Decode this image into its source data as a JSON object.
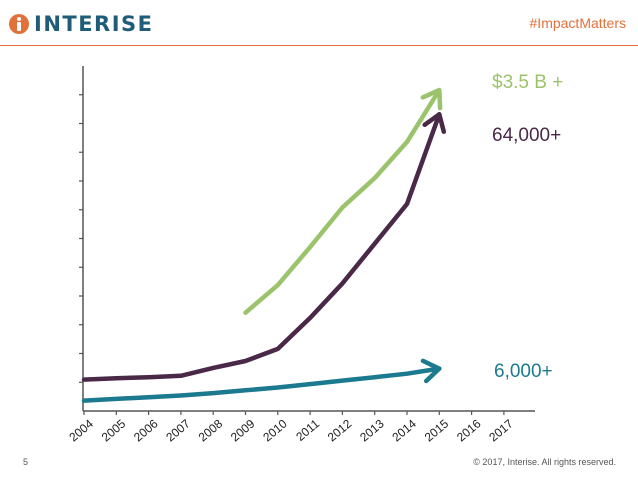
{
  "header": {
    "logo_text": "INTERISE",
    "hashtag": "#ImpactMatters",
    "brand_color": "#1f5c78",
    "accent_color": "#e2703a"
  },
  "footer": {
    "page_number": "5",
    "copyright": "© 2017, Interise. All rights reserved."
  },
  "chart_data": {
    "type": "line",
    "title": "",
    "xlabel": "",
    "ylabel": "",
    "x": [
      "2004",
      "2005",
      "2006",
      "2007",
      "2008",
      "2009",
      "2010",
      "2011",
      "2012",
      "2013",
      "2014",
      "2015",
      "2016",
      "2017"
    ],
    "ylim": [
      0,
      100
    ],
    "y_ticks": 11,
    "grid": false,
    "series": [
      {
        "name": "",
        "label": "$3.5 B +",
        "color": "#9bc36b",
        "values": [
          null,
          null,
          null,
          null,
          null,
          28.5,
          36.5,
          47.5,
          59,
          67.5,
          78,
          93,
          null,
          null
        ],
        "arrow": true
      },
      {
        "name": "",
        "label": "64,000+",
        "color": "#4a2847",
        "values": [
          9.1,
          9.5,
          9.8,
          10.2,
          12.5,
          14.5,
          18,
          27,
          37,
          48.5,
          60,
          86,
          null,
          null
        ],
        "arrow": true
      },
      {
        "name": "",
        "label": "6,000+",
        "color": "#1b7a8f",
        "values": [
          3,
          3.5,
          4,
          4.5,
          5.2,
          6,
          6.8,
          7.8,
          8.8,
          9.8,
          10.8,
          12.3,
          null,
          null
        ],
        "arrow": true
      }
    ]
  }
}
